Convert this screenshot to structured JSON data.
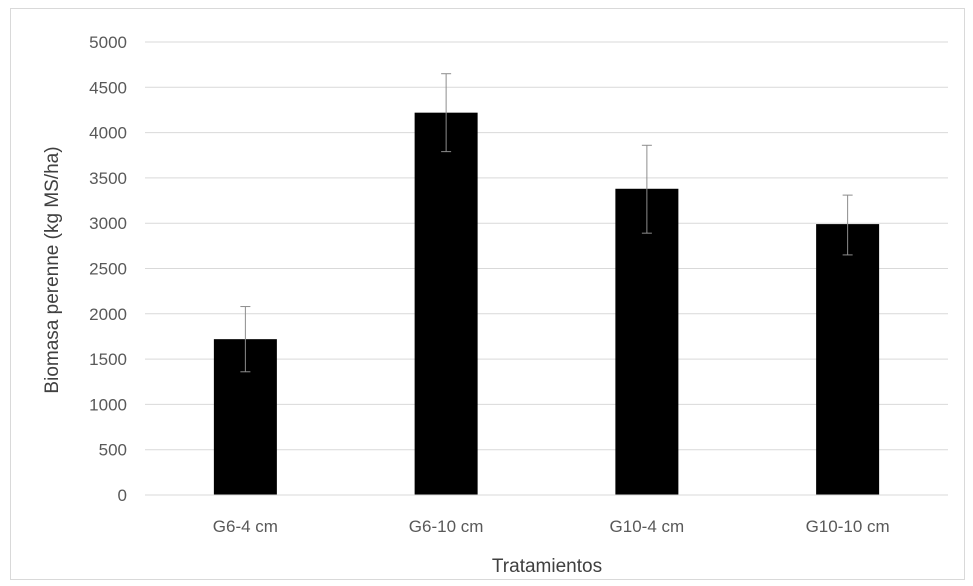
{
  "chart_data": {
    "type": "bar",
    "title": "",
    "xlabel": "Tratamientos",
    "ylabel": "Biomasa perenne (kg MS/ha)",
    "categories": [
      "G6-4 cm",
      "G6-10 cm",
      "G10-4 cm",
      "G10-10 cm"
    ],
    "values": [
      1720,
      4220,
      3380,
      2990
    ],
    "error_high": [
      2080,
      4650,
      3860,
      3310
    ],
    "error_low": [
      1360,
      3790,
      2890,
      2650
    ],
    "ylim": [
      0,
      5000
    ],
    "yticks": [
      0,
      500,
      1000,
      1500,
      2000,
      2500,
      3000,
      3500,
      4000,
      4500,
      5000
    ],
    "grid": true,
    "legend": "none",
    "colors": {
      "bar": "#000000",
      "grid": "#d9d9d9",
      "error_bar": "#8c8c8c",
      "tick_text": "#595959"
    }
  }
}
